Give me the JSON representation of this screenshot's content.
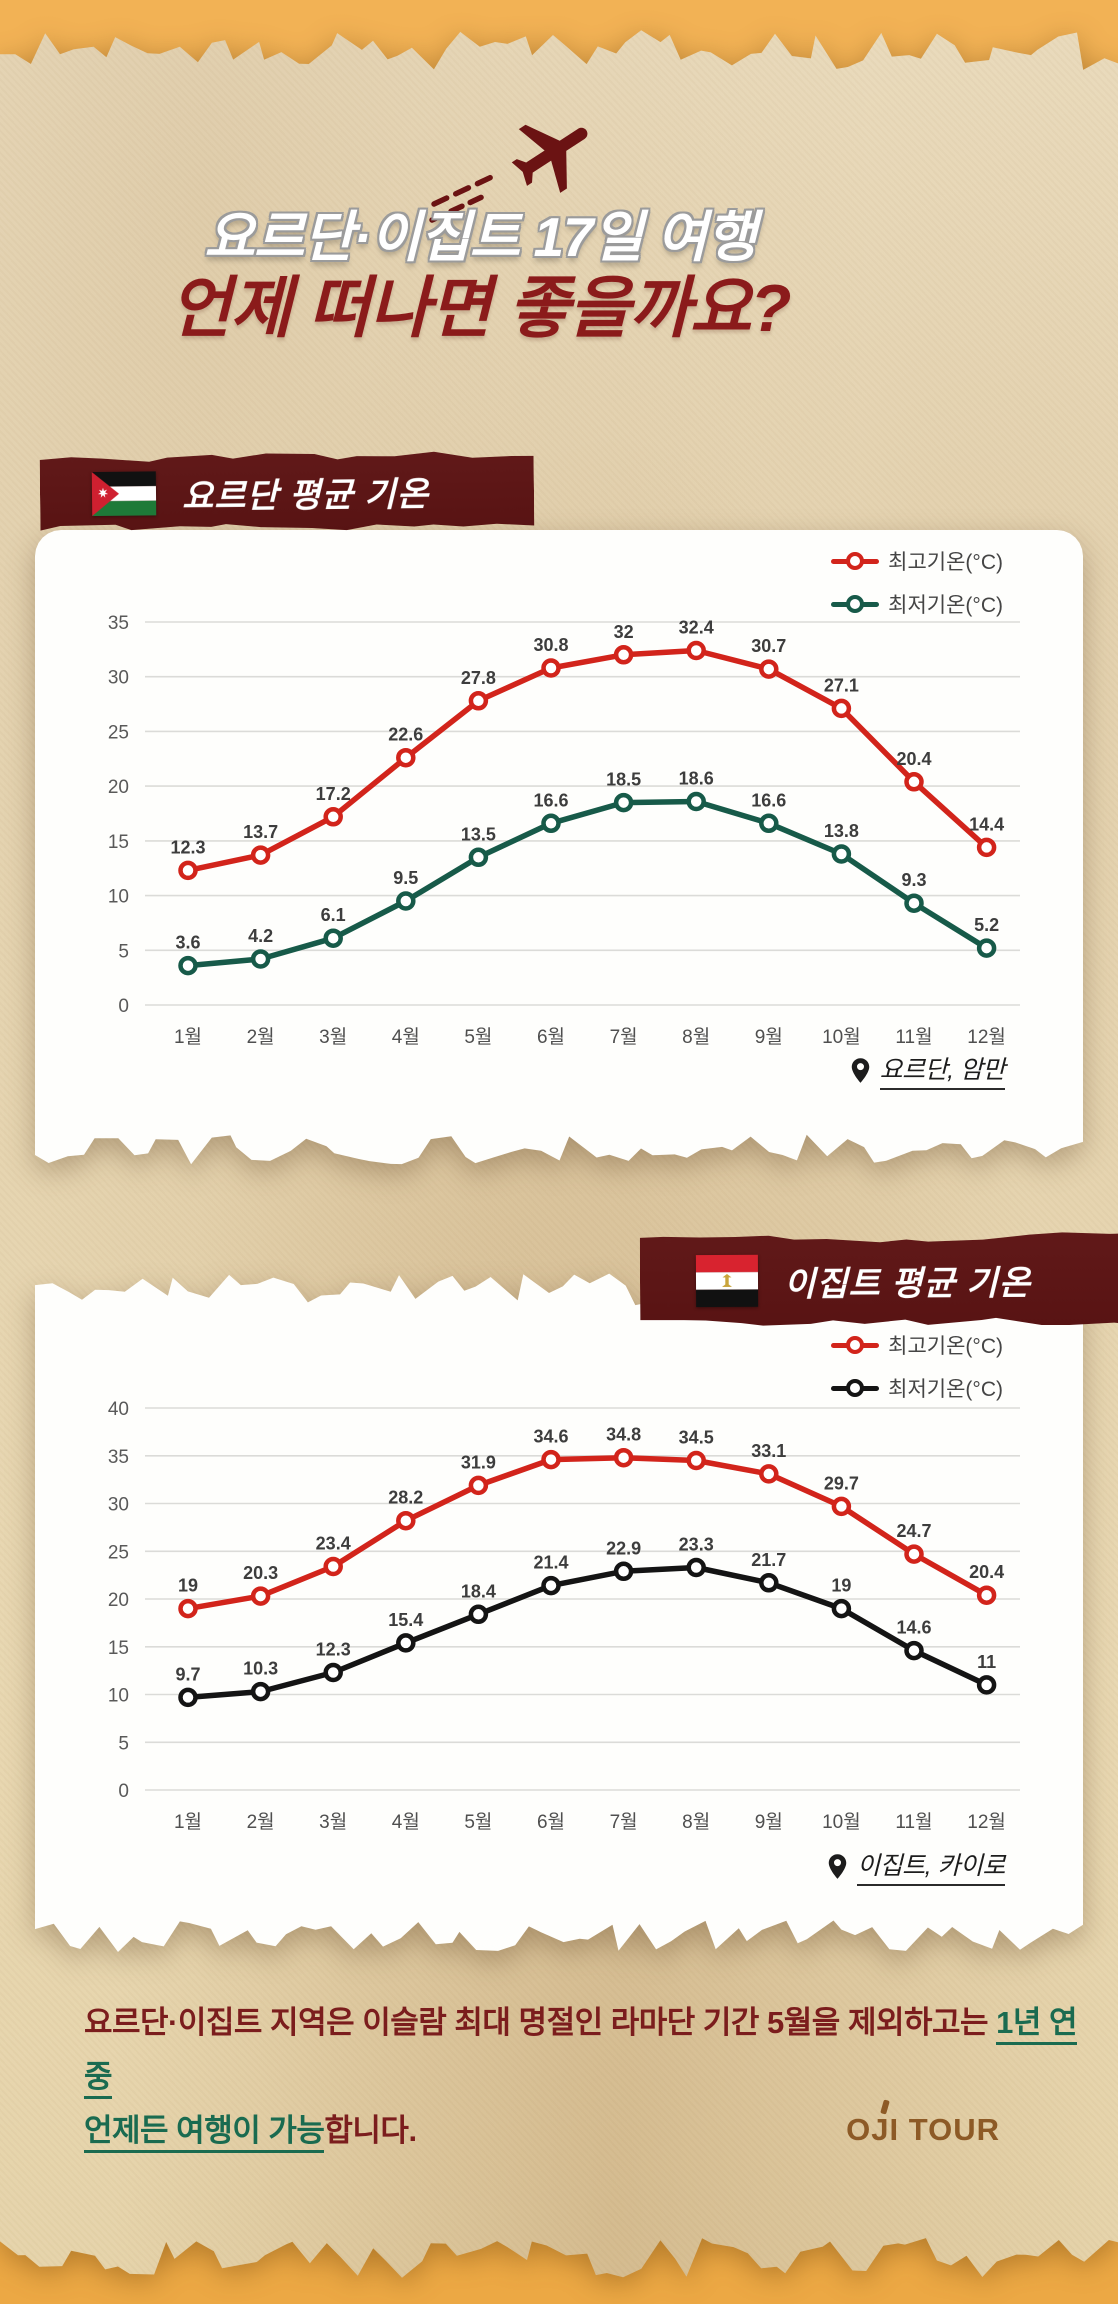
{
  "page": {
    "background_color": "#efae4e",
    "paper_color": "#eaddbc",
    "banner_color": "#5e1616"
  },
  "header": {
    "title_line1": "요르단·이집트 17일 여행",
    "title_line2": "언제 떠나면 좋을까요?",
    "title_accent_color": "#8b1b1b"
  },
  "footer": {
    "line1_normal": "요르단·이집트 지역은 이슬람 최대 명절인 라마단 기간 5월을 제외하고는 ",
    "line1_green": "1년 연중",
    "line2_green": "언제든 여행이 가능",
    "line2_normal": "합니다.",
    "green_color": "#1a6b50",
    "text_color": "#7b1d1d"
  },
  "logo": {
    "text": "OJI TOUR"
  },
  "chart_data": [
    {
      "type": "line",
      "title": "요르단 평균 기온",
      "location": "요르단, 암만",
      "legend_position": "top-right",
      "grid": true,
      "data_labels": true,
      "categories": [
        "1월",
        "2월",
        "3월",
        "4월",
        "5월",
        "6월",
        "7월",
        "8월",
        "9월",
        "10월",
        "11월",
        "12월"
      ],
      "series": [
        {
          "name": "최고기온(°C)",
          "color": "#d2241b",
          "values": [
            12.3,
            13.7,
            17.2,
            22.6,
            27.8,
            30.8,
            32,
            32.4,
            30.7,
            27.1,
            20.4,
            14.4
          ]
        },
        {
          "name": "최저기온(°C)",
          "color": "#175a49",
          "values": [
            3.6,
            4.2,
            6.1,
            9.5,
            13.5,
            16.6,
            18.5,
            18.6,
            16.6,
            13.8,
            9.3,
            5.2
          ]
        }
      ],
      "ylim": [
        0,
        35
      ],
      "ystep": 5
    },
    {
      "type": "line",
      "title": "이집트 평균 기온",
      "location": "이집트, 카이로",
      "legend_position": "top-right",
      "grid": true,
      "data_labels": true,
      "categories": [
        "1월",
        "2월",
        "3월",
        "4월",
        "5월",
        "6월",
        "7월",
        "8월",
        "9월",
        "10월",
        "11월",
        "12월"
      ],
      "series": [
        {
          "name": "최고기온(°C)",
          "color": "#d2241b",
          "values": [
            19,
            20.3,
            23.4,
            28.2,
            31.9,
            34.6,
            34.8,
            34.5,
            33.1,
            29.7,
            24.7,
            20.4
          ]
        },
        {
          "name": "최저기온(°C)",
          "color": "#141414",
          "values": [
            9.7,
            10.3,
            12.3,
            15.4,
            18.4,
            21.4,
            22.9,
            23.3,
            21.7,
            19,
            14.6,
            11
          ]
        }
      ],
      "ylim": [
        0,
        40
      ],
      "ystep": 5
    }
  ]
}
